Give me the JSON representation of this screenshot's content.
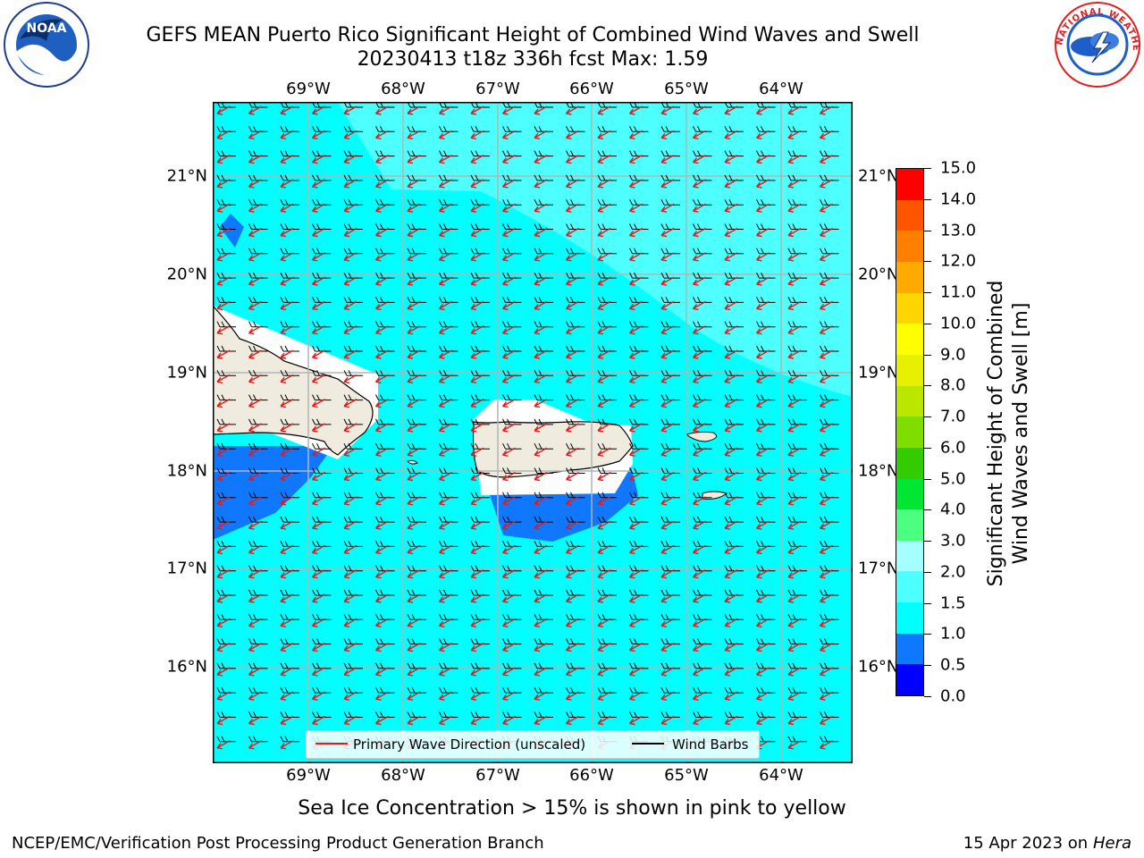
{
  "header": {
    "title_line1": "GEFS MEAN Puerto Rico Significant Height of Combined Wind Waves and Swell",
    "title_line2": "20230413 t18z 336h fcst   Max: 1.59"
  },
  "logos": {
    "left_icon": "noaa-logo-icon",
    "left_text": "NOAA",
    "right_icon": "nws-logo-icon",
    "right_text": "NATIONAL WEATHER SERVICE"
  },
  "map": {
    "lon_labels": [
      "69°W",
      "68°W",
      "67°W",
      "66°W",
      "65°W",
      "64°W"
    ],
    "lat_labels": [
      "21°N",
      "20°N",
      "19°N",
      "18°N",
      "17°N",
      "16°N"
    ],
    "lon_range": [
      -70.0,
      -63.25
    ],
    "lat_range": [
      15.05,
      21.75
    ],
    "grid": true,
    "land_color": "#efecdf",
    "ocean_field_color": "#00ffff",
    "primary_wave_color": "#e81818",
    "wind_barb_color": "#000000"
  },
  "colorbar": {
    "label_line1": "Significant Height of Combined",
    "label_line2": "Wind Waves and Swell [m]",
    "ticks": [
      "0.0",
      "0.5",
      "1.0",
      "1.5",
      "2.0",
      "3.0",
      "4.0",
      "5.0",
      "6.0",
      "7.0",
      "8.0",
      "9.0",
      "10.0",
      "11.0",
      "12.0",
      "13.0",
      "14.0",
      "15.0"
    ],
    "colors": [
      "#0000ff",
      "#0f78ff",
      "#00ffff",
      "#4dffff",
      "#a6ffff",
      "#4dff80",
      "#00e633",
      "#33cc00",
      "#80dd00",
      "#bbe600",
      "#e6f000",
      "#ffff00",
      "#ffd500",
      "#ffaa00",
      "#ff7f00",
      "#ff5500",
      "#ff0000"
    ]
  },
  "legend": {
    "primary_wave": "Primary Wave Direction (unscaled)",
    "wind_barbs": "Wind Barbs",
    "placement": "bottom-center"
  },
  "footer": {
    "note": "Sea Ice Concentration > 15% is shown in pink to yellow",
    "credit": "NCEP/EMC/Verification Post Processing Product Generation Branch",
    "date_prefix": "15 Apr 2023 on ",
    "date_machine": "Hera"
  }
}
